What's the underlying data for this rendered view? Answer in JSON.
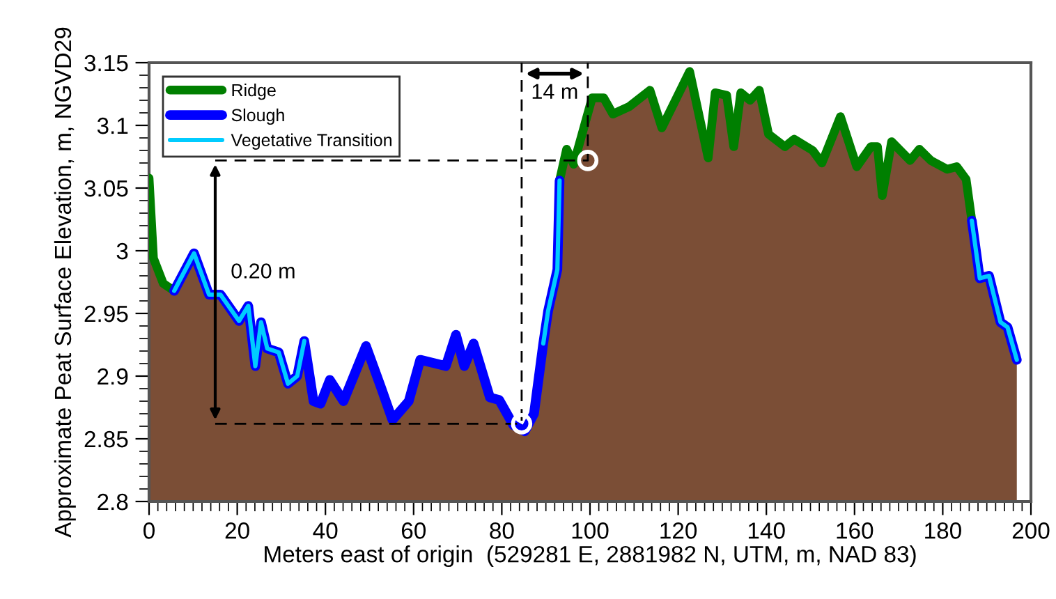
{
  "chart_data": {
    "type": "line",
    "xlabel": "Meters east of origin  (529281 E, 2881982 N, UTM, m, NAD 83)",
    "ylabel": "Approximate Peat Surface Elevation, m, NGVD29",
    "xlim": [
      0,
      200
    ],
    "xticks": [
      0,
      20,
      40,
      60,
      80,
      100,
      120,
      140,
      160,
      180,
      200
    ],
    "ylim": [
      2.8,
      3.15
    ],
    "yticks": [
      2.8,
      2.85,
      2.9,
      2.95,
      3,
      3.05,
      3.1,
      3.15
    ],
    "grid": false,
    "legend": "top left",
    "marker": "none",
    "line_style": "solid",
    "series": [
      {
        "type": "area",
        "color": "#7b4e36",
        "x": [
          0,
          1,
          3.2,
          5.7,
          10.2,
          13.6,
          16.2,
          20.4,
          22.5,
          24.1,
          25.4,
          26.8,
          29.4,
          31.5,
          33.6,
          35.2,
          37.3,
          38.9,
          41,
          44.1,
          49.2,
          52.6,
          55.2,
          58.9,
          61.5,
          67.3,
          69.6,
          71.5,
          73.6,
          77.3,
          79.4,
          82.6,
          85.2,
          87.3,
          89.4,
          90.5,
          92.6,
          93.1,
          94.7,
          96.3,
          100.5,
          103.1,
          105.2,
          108.9,
          113.6,
          116.3,
          122.6,
          126.8,
          128.4,
          131,
          132.6,
          134.2,
          136.3,
          138.4,
          140.5,
          144.2,
          146.3,
          150.5,
          152.6,
          156.8,
          160.5,
          163.7,
          165.2,
          166.3,
          168.4,
          172.6,
          174.7,
          177.3,
          181,
          183.2,
          185.3,
          186.6,
          188.4,
          190.5,
          193.1,
          194.7,
          196.8
        ],
        "values": [
          3.058,
          2.994,
          2.974,
          2.968,
          2.998,
          2.965,
          2.965,
          2.944,
          2.956,
          2.908,
          2.943,
          2.922,
          2.919,
          2.894,
          2.9,
          2.928,
          2.88,
          2.878,
          2.897,
          2.88,
          2.924,
          2.891,
          2.865,
          2.88,
          2.913,
          2.908,
          2.933,
          2.908,
          2.926,
          2.883,
          2.881,
          2.861,
          2.856,
          2.87,
          2.926,
          2.952,
          2.985,
          3.056,
          3.081,
          3.069,
          3.122,
          3.122,
          3.109,
          3.115,
          3.128,
          3.098,
          3.143,
          3.074,
          3.126,
          3.124,
          3.083,
          3.126,
          3.12,
          3.128,
          3.093,
          3.083,
          3.089,
          3.08,
          3.07,
          3.107,
          3.067,
          3.083,
          3.083,
          3.044,
          3.087,
          3.072,
          3.081,
          3.072,
          3.065,
          3.067,
          3.057,
          3.024,
          2.978,
          2.98,
          2.943,
          2.939,
          2.913
        ]
      },
      {
        "type": "line",
        "color": "#000000",
        "line_style": "dashed",
        "x": [
          15,
          99.5,
          99.5,
          null,
          15,
          84.5,
          84.5
        ],
        "values": [
          3.072,
          3.072,
          3.15,
          null,
          2.862,
          2.862,
          3.15
        ]
      },
      {
        "type": "scatter",
        "color": "#ffffff",
        "marker": "circle",
        "x": [
          84.5,
          99.5
        ],
        "values": [
          2.862,
          3.072
        ]
      },
      {
        "name": "Ridge",
        "color": "#007f00",
        "x": [
          0,
          1,
          3.2,
          5.7,
          null,
          93.1,
          94.7,
          96.3,
          100.5,
          103.1,
          105.2,
          108.9,
          113.6,
          116.3,
          122.6,
          126.8,
          128.4,
          131,
          132.6,
          134.2,
          136.3,
          138.4,
          140.5,
          144.2,
          146.3,
          150.5,
          152.6,
          156.8,
          160.5,
          163.7,
          165.2,
          166.3,
          168.4,
          172.6,
          174.7,
          177.3,
          181,
          183.2,
          185.3,
          186.6
        ],
        "values": [
          3.058,
          2.994,
          2.974,
          2.968,
          null,
          3.056,
          3.081,
          3.069,
          3.122,
          3.122,
          3.109,
          3.115,
          3.128,
          3.098,
          3.143,
          3.074,
          3.126,
          3.124,
          3.083,
          3.126,
          3.12,
          3.128,
          3.093,
          3.083,
          3.089,
          3.08,
          3.07,
          3.107,
          3.067,
          3.083,
          3.083,
          3.044,
          3.087,
          3.072,
          3.081,
          3.072,
          3.065,
          3.067,
          3.057,
          3.024
        ]
      },
      {
        "name": "Slough",
        "color": "#0000ff",
        "x": [
          5.7,
          10.2,
          13.6,
          16.2,
          20.4,
          22.5,
          24.1,
          25.4,
          26.8,
          29.4,
          31.5,
          33.6,
          35.2,
          37.3,
          38.9,
          41,
          44.1,
          49.2,
          52.6,
          55.2,
          58.9,
          61.5,
          67.3,
          69.6,
          71.5,
          73.6,
          77.3,
          79.4,
          82.6,
          85.2,
          87.3,
          89.4,
          90.5,
          92.6,
          93.1,
          null,
          186.6,
          188.4,
          190.5,
          193.1,
          194.7,
          196.8
        ],
        "values": [
          2.968,
          2.998,
          2.965,
          2.965,
          2.944,
          2.956,
          2.908,
          2.943,
          2.922,
          2.919,
          2.894,
          2.9,
          2.928,
          2.88,
          2.878,
          2.897,
          2.88,
          2.924,
          2.891,
          2.865,
          2.88,
          2.913,
          2.908,
          2.933,
          2.908,
          2.926,
          2.883,
          2.881,
          2.861,
          2.856,
          2.87,
          2.926,
          2.952,
          2.985,
          3.056,
          null,
          3.024,
          2.978,
          2.98,
          2.943,
          2.939,
          2.913
        ]
      },
      {
        "name": "Vegetative Transition",
        "color": "#00ccff",
        "x": [
          5.7,
          10.2,
          13.6,
          16.2,
          20.4,
          22.5,
          24.1,
          25.4,
          26.8,
          29.4,
          31.5,
          33.6,
          35.2,
          null,
          89.4,
          90.5,
          92.6,
          93.1,
          null,
          186.6,
          188.4,
          190.5,
          193.1,
          194.7,
          196.8
        ],
        "values": [
          2.968,
          2.998,
          2.965,
          2.965,
          2.944,
          2.956,
          2.908,
          2.943,
          2.922,
          2.919,
          2.894,
          2.9,
          2.928,
          null,
          2.926,
          2.952,
          2.985,
          3.056,
          null,
          3.024,
          2.978,
          2.98,
          2.943,
          2.939,
          2.913
        ]
      }
    ],
    "annotations": [
      "0.20 m",
      "14 m"
    ]
  }
}
